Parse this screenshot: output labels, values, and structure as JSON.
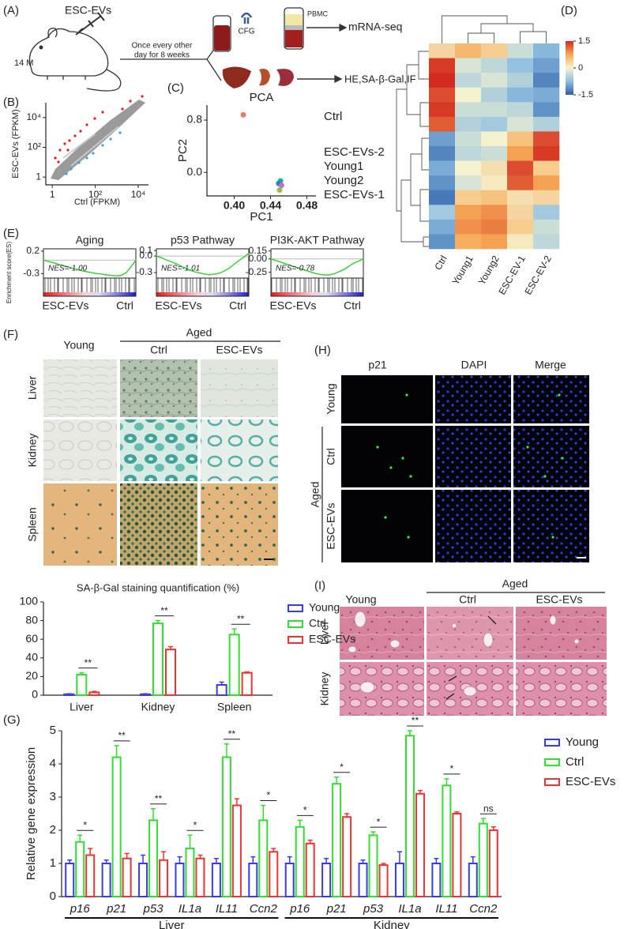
{
  "panel_labels": [
    "(A)",
    "(B)",
    "(C)",
    "(D)",
    "(E)",
    "(F)",
    "(G)",
    "(H)",
    "(I)"
  ],
  "schematic": {
    "treatment": "ESC-EVs",
    "age": "14 M",
    "schedule": [
      "Once every other",
      "day for 8 weeks"
    ],
    "centrifuge": "CFG",
    "fraction": "PBMC",
    "sequencing": "mRNA-seq",
    "assays": "HE,SA-β-Gal,IF"
  },
  "staining_panel": {
    "columns": [
      "Young",
      "Ctrl",
      "ESC-EVs"
    ],
    "group": "Aged",
    "rows": [
      "Liver",
      "Kidney",
      "Spleen"
    ]
  },
  "fluorescence_panel": {
    "columns": [
      "p21",
      "DAPI",
      "Merge"
    ],
    "group": "Aged",
    "rows": [
      "Young",
      "Ctrl",
      "ESC-EVs"
    ]
  },
  "he_panel": {
    "columns": [
      "Young",
      "Ctrl",
      "ESC-EVs"
    ],
    "group": "Aged",
    "rows": [
      "Liver",
      "Kidney"
    ]
  },
  "chart_data": [
    {
      "type": "scatter",
      "x_label": "Ctrl (FPKM)",
      "y_label": "ESC-EVs (FPKM)",
      "log_scale": true,
      "xlim": [
        0.5,
        30000
      ],
      "ylim": [
        0.3,
        100000
      ],
      "xticks": [
        1,
        {
          "value": 100,
          "label": "10²"
        },
        {
          "value": 10000,
          "label": "10⁴"
        }
      ],
      "yticks": [
        1,
        {
          "value": 100,
          "label": "10²"
        },
        {
          "value": 10000,
          "label": "10⁴"
        }
      ]
    },
    {
      "type": "scatter",
      "title": "PCA",
      "x_label": "PC1",
      "y_label": "PC2",
      "xlim": [
        0.37,
        0.49
      ],
      "ylim": [
        -0.36,
        1.03
      ],
      "xticks": [
        {
          "value": 0.4,
          "label": "0.40"
        },
        0.44,
        0.48
      ],
      "yticks": [
        {
          "value": 0,
          "label": "0.0"
        },
        0.8
      ],
      "series": [
        {
          "name": "Ctrl",
          "color": "#f07868",
          "x": [
            0.41
          ],
          "values": [
            0.88
          ]
        },
        {
          "name": "ESC-EVs-2",
          "color": "#20b497",
          "x": [
            0.451
          ],
          "values": [
            -0.13
          ]
        },
        {
          "name": "Young1",
          "color": "#1c88c4",
          "x": [
            0.449
          ],
          "values": [
            -0.17
          ]
        },
        {
          "name": "Young2",
          "color": "#dd5fd8",
          "x": [
            0.452
          ],
          "values": [
            -0.2
          ]
        },
        {
          "name": "ESC-EVs-1",
          "color": "#8dc43c",
          "x": [
            0.45
          ],
          "values": [
            -0.27
          ]
        }
      ]
    },
    {
      "type": "heatmap",
      "categories": [
        "Ctrl",
        "Young1",
        "Young2",
        "ESC-EV-1",
        "ESC-EV-2"
      ],
      "zlim": [
        -1.5,
        1.5
      ],
      "zticks": [
        1.5,
        0,
        -1.5
      ],
      "colorscale": [
        "#2f5ea9",
        "#8dbfe0",
        "#f5f3cf",
        "#f6a957",
        "#d22a1f"
      ],
      "values": [
        [
          0.3,
          0.6,
          0.4,
          -0.3,
          -0.8
        ],
        [
          1.4,
          -0.2,
          -0.4,
          -0.7,
          -1.0
        ],
        [
          1.5,
          -0.4,
          -0.2,
          -0.5,
          -1.2
        ],
        [
          1.3,
          0.0,
          -0.5,
          -0.8,
          -0.9
        ],
        [
          1.4,
          -0.3,
          -0.3,
          -0.4,
          -1.1
        ],
        [
          1.2,
          -0.5,
          -0.6,
          -0.2,
          -0.5
        ],
        [
          -1.0,
          -0.3,
          0.0,
          0.5,
          1.3
        ],
        [
          -1.2,
          -0.4,
          -0.3,
          0.8,
          1.4
        ],
        [
          -0.9,
          0.0,
          0.2,
          1.3,
          0.4
        ],
        [
          -1.1,
          -0.2,
          0.1,
          1.2,
          0.8
        ],
        [
          -1.3,
          0.4,
          0.5,
          0.2,
          0.3
        ],
        [
          -0.6,
          0.8,
          0.9,
          0.3,
          -0.6
        ],
        [
          -0.9,
          0.9,
          1.0,
          0.4,
          -0.3
        ],
        [
          -1.1,
          0.7,
          0.8,
          0.1,
          -0.4
        ]
      ]
    },
    {
      "type": "line",
      "title": "Aging",
      "y_label": "Enrichment score(ES)",
      "annotation": "NES=-1.00",
      "x_labels": [
        "ESC-EVs",
        "Ctrl"
      ],
      "color": "#33cc33",
      "ylim": [
        -0.4,
        0.25
      ],
      "yticks": [
        0.2,
        -0.3
      ],
      "values": [
        0,
        -0.03,
        -0.06,
        -0.09,
        -0.12,
        -0.15,
        -0.18,
        -0.21,
        -0.24,
        -0.26,
        -0.28,
        -0.3,
        -0.31,
        -0.33,
        -0.34,
        -0.35,
        -0.34,
        -0.28,
        -0.15,
        0.0
      ]
    },
    {
      "type": "line",
      "title": "p53 Pathway",
      "annotation": "NES=-1.01",
      "x_labels": [
        "ESC-EVs",
        "Ctrl"
      ],
      "color": "#33cc33",
      "ylim": [
        -0.4,
        0.13
      ],
      "yticks": [
        0.1,
        {
          "value": 0,
          "label": "0.0"
        },
        -0.3
      ],
      "values": [
        0,
        -0.03,
        -0.07,
        -0.1,
        -0.14,
        -0.18,
        -0.22,
        -0.26,
        -0.29,
        -0.31,
        -0.33,
        -0.34,
        -0.33,
        -0.31,
        -0.27,
        -0.22,
        -0.15,
        -0.08,
        -0.02,
        0.05
      ]
    },
    {
      "type": "line",
      "title": "PI3K-AKT Pathway",
      "annotation": "NES=-0.78",
      "x_labels": [
        "ESC-EVs",
        "Ctrl"
      ],
      "color": "#33cc33",
      "ylim": [
        -0.36,
        0.19
      ],
      "yticks": [
        0.15,
        {
          "value": 0,
          "label": "0.00"
        },
        -0.25
      ],
      "values": [
        0,
        -0.03,
        -0.06,
        -0.09,
        -0.12,
        -0.15,
        -0.18,
        -0.21,
        -0.24,
        -0.27,
        -0.29,
        -0.3,
        -0.3,
        -0.28,
        -0.24,
        -0.2,
        -0.14,
        -0.08,
        -0.04,
        0.0
      ]
    },
    {
      "type": "bar",
      "title": "SA-β-Gal staining quantification (%)",
      "categories": [
        "Liver",
        "Kidney",
        "Spleen"
      ],
      "ylim": [
        0,
        100
      ],
      "yticks": [
        0,
        20,
        40,
        60,
        80,
        100
      ],
      "series": [
        {
          "name": "Young",
          "color": "#3a3ae8",
          "values": [
            1,
            1,
            11
          ],
          "errors": [
            0.5,
            0.5,
            3
          ]
        },
        {
          "name": "Ctrl",
          "color": "#33dd33",
          "values": [
            22,
            77,
            65
          ],
          "errors": [
            2,
            3,
            6
          ]
        },
        {
          "name": "ESC-EVs",
          "color": "#ee3333",
          "values": [
            3,
            49,
            24
          ],
          "errors": [
            1,
            3,
            1
          ]
        }
      ],
      "annotations": [
        "**",
        "**",
        "**"
      ]
    },
    {
      "type": "bar",
      "y_label": "Relative gene expression",
      "italic_categories": true,
      "categories": [
        "p16",
        "p21",
        "p53",
        "IL1a",
        "IL11",
        "Ccn2",
        "p16",
        "p21",
        "p53",
        "IL1a",
        "IL11",
        "Ccn2"
      ],
      "groups": [
        "Liver",
        "Kidney"
      ],
      "ylim": [
        0,
        5
      ],
      "yticks": [
        0,
        1,
        2,
        3,
        4,
        5
      ],
      "series": [
        {
          "name": "Young",
          "color": "#3a3ae8",
          "values": [
            1,
            1,
            1,
            1,
            1,
            1,
            1,
            1,
            1,
            1,
            1,
            1
          ],
          "errors": [
            0.1,
            0.1,
            0.25,
            0.2,
            0.15,
            0.2,
            0.2,
            0.15,
            0.1,
            0.35,
            0.15,
            0.2
          ]
        },
        {
          "name": "Ctrl",
          "color": "#33dd33",
          "values": [
            1.65,
            4.2,
            2.3,
            1.45,
            4.2,
            2.3,
            2.1,
            3.4,
            1.85,
            4.85,
            3.35,
            2.2
          ],
          "errors": [
            0.2,
            0.35,
            0.35,
            0.4,
            0.4,
            0.45,
            0.2,
            0.2,
            0.1,
            0.15,
            0.2,
            0.15
          ]
        },
        {
          "name": "ESC-EVs",
          "color": "#ee3333",
          "values": [
            1.25,
            1.15,
            1.1,
            1.15,
            2.75,
            1.35,
            1.6,
            2.4,
            0.95,
            3.1,
            2.5,
            2.0
          ],
          "errors": [
            0.2,
            0.15,
            0.25,
            0.1,
            0.2,
            0.1,
            0.1,
            0.1,
            0.05,
            0.1,
            0.05,
            0.1
          ]
        }
      ],
      "annotations": [
        "*",
        "**",
        "**",
        "*",
        "**",
        "*",
        "*",
        "*",
        "*",
        "**",
        "*",
        "ns"
      ]
    }
  ]
}
